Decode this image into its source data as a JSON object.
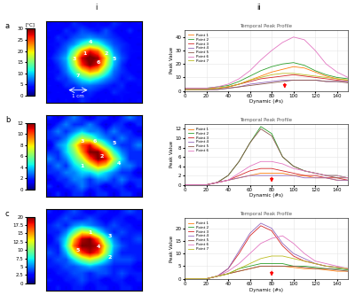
{
  "column_labels": [
    "i",
    "ii"
  ],
  "chart_data": [
    {
      "type": "heatmap",
      "row_label": "a",
      "colorbar_label": "[°C]",
      "colorbar_range": [
        0,
        30
      ],
      "colorbar_ticks": [
        0,
        5,
        10,
        15,
        20,
        25,
        30
      ],
      "tick_labels": false,
      "scale_label": "1 cm",
      "cells": [
        [
          3,
          4,
          3,
          5,
          4,
          3,
          4,
          3,
          5,
          4,
          3,
          4
        ],
        [
          4,
          3,
          5,
          4,
          6,
          5,
          4,
          6,
          4,
          3,
          5,
          3
        ],
        [
          3,
          5,
          4,
          6,
          7,
          8,
          7,
          6,
          5,
          4,
          3,
          4
        ],
        [
          4,
          4,
          6,
          8,
          12,
          15,
          13,
          9,
          6,
          5,
          4,
          3
        ],
        [
          3,
          5,
          7,
          14,
          22,
          27,
          24,
          15,
          8,
          5,
          4,
          4
        ],
        [
          4,
          6,
          9,
          18,
          28,
          31,
          29,
          20,
          10,
          6,
          4,
          3
        ],
        [
          3,
          5,
          8,
          16,
          26,
          30,
          27,
          18,
          9,
          5,
          3,
          4
        ],
        [
          4,
          4,
          7,
          12,
          18,
          22,
          20,
          13,
          7,
          5,
          4,
          3
        ],
        [
          3,
          5,
          5,
          8,
          11,
          13,
          11,
          8,
          6,
          4,
          5,
          4
        ],
        [
          4,
          3,
          5,
          5,
          7,
          7,
          6,
          5,
          4,
          5,
          3,
          4
        ],
        [
          3,
          4,
          3,
          5,
          4,
          5,
          4,
          3,
          5,
          4,
          4,
          3
        ],
        [
          4,
          3,
          4,
          3,
          5,
          4,
          3,
          4,
          3,
          4,
          3,
          4
        ]
      ],
      "point_labels": [
        {
          "label": "4",
          "x": 5,
          "y": 2.6
        },
        {
          "label": "1",
          "x": 4.3,
          "y": 4.2
        },
        {
          "label": "2",
          "x": 7,
          "y": 4.2
        },
        {
          "label": "5",
          "x": 8,
          "y": 5
        },
        {
          "label": "3",
          "x": 3,
          "y": 5
        },
        {
          "label": "6",
          "x": 6,
          "y": 5.6
        },
        {
          "label": "7",
          "x": 3.5,
          "y": 7.5
        }
      ]
    },
    {
      "type": "line",
      "title": "Temporal Peak Profile",
      "x_label": "Dynamic (#s)",
      "y_label": "Peak Value",
      "xlim": [
        0,
        150
      ],
      "xticks": [
        0,
        20,
        40,
        60,
        80,
        100,
        120,
        140
      ],
      "ylim": [
        0,
        45
      ],
      "yticks": [
        0,
        10,
        20,
        30,
        40
      ],
      "legend": "upper left",
      "arrow_x": 92,
      "x": [
        0,
        10,
        20,
        30,
        40,
        50,
        60,
        70,
        80,
        90,
        100,
        110,
        120,
        130,
        140,
        150
      ],
      "series": [
        {
          "name": "Point 1",
          "color": "#ff7f0e",
          "values": [
            2,
            2,
            2,
            2,
            3,
            5,
            8,
            11,
            14,
            16,
            18,
            17,
            14,
            11,
            9,
            8
          ]
        },
        {
          "name": "Point 2",
          "color": "#2ca02c",
          "values": [
            2,
            2,
            2,
            3,
            4,
            7,
            11,
            15,
            18,
            20,
            21,
            19,
            15,
            12,
            10,
            9
          ]
        },
        {
          "name": "Point 3",
          "color": "#d62728",
          "values": [
            1,
            1,
            1,
            2,
            3,
            5,
            7,
            9,
            10,
            11,
            12,
            11,
            10,
            9,
            8,
            7
          ]
        },
        {
          "name": "Point 4",
          "color": "#9467bd",
          "values": [
            1,
            1,
            1,
            1,
            2,
            3,
            5,
            6,
            7,
            8,
            8,
            8,
            8,
            7,
            7,
            7
          ]
        },
        {
          "name": "Point 5",
          "color": "#8c564b",
          "values": [
            1,
            1,
            1,
            1,
            2,
            3,
            4,
            5,
            6,
            7,
            8,
            8,
            8,
            7,
            7,
            6
          ]
        },
        {
          "name": "Point 6",
          "color": "#e377c2",
          "values": [
            2,
            2,
            2,
            3,
            5,
            9,
            15,
            23,
            30,
            36,
            40,
            38,
            30,
            20,
            14,
            10
          ]
        },
        {
          "name": "Point 7",
          "color": "#bcbd22",
          "values": [
            1,
            1,
            1,
            2,
            3,
            5,
            8,
            10,
            12,
            13,
            13,
            12,
            11,
            10,
            9,
            8
          ]
        }
      ]
    },
    {
      "type": "heatmap",
      "row_label": "b",
      "colorbar_range": [
        0,
        12
      ],
      "colorbar_ticks": [
        0,
        2,
        4,
        6,
        8,
        10,
        12
      ],
      "tick_labels": false,
      "cells": [
        [
          2,
          1,
          2,
          3,
          2,
          1,
          2,
          2,
          1,
          2,
          3,
          2
        ],
        [
          1,
          2,
          3,
          2,
          2,
          3,
          2,
          1,
          2,
          2,
          1,
          2
        ],
        [
          2,
          3,
          2,
          3,
          4,
          3,
          3,
          2,
          3,
          2,
          2,
          1
        ],
        [
          2,
          2,
          3,
          5,
          7,
          6,
          4,
          3,
          2,
          3,
          2,
          2
        ],
        [
          1,
          3,
          4,
          7,
          10,
          11,
          8,
          5,
          3,
          2,
          2,
          3
        ],
        [
          2,
          2,
          4,
          6,
          9,
          12,
          12,
          9,
          5,
          3,
          2,
          2
        ],
        [
          3,
          2,
          3,
          5,
          7,
          10,
          12,
          11,
          7,
          4,
          2,
          2
        ],
        [
          2,
          3,
          2,
          4,
          5,
          7,
          9,
          8,
          5,
          3,
          3,
          2
        ],
        [
          2,
          2,
          3,
          3,
          4,
          4,
          5,
          4,
          3,
          2,
          2,
          1
        ],
        [
          1,
          2,
          2,
          3,
          3,
          2,
          3,
          3,
          2,
          3,
          2,
          2
        ],
        [
          2,
          1,
          2,
          2,
          3,
          2,
          2,
          1,
          2,
          2,
          1,
          2
        ],
        [
          1,
          2,
          1,
          2,
          2,
          1,
          2,
          2,
          1,
          2,
          2,
          1
        ]
      ],
      "point_labels": [
        {
          "label": "3",
          "x": 4,
          "y": 3.4
        },
        {
          "label": "6",
          "x": 5.6,
          "y": 3.4
        },
        {
          "label": "5",
          "x": 8,
          "y": 3.6
        },
        {
          "label": "2",
          "x": 6.5,
          "y": 5.5
        },
        {
          "label": "4",
          "x": 8.6,
          "y": 6.6
        },
        {
          "label": "1",
          "x": 4,
          "y": 7
        }
      ]
    },
    {
      "type": "line",
      "title": "Temporal Peak Profile",
      "x_label": "Dynamic (#s)",
      "y_label": "Peak Value",
      "xlim": [
        0,
        150
      ],
      "xticks": [
        0,
        20,
        40,
        60,
        80,
        100,
        120,
        140
      ],
      "ylim": [
        0,
        13
      ],
      "yticks": [
        0,
        2,
        4,
        6,
        8,
        10,
        12
      ],
      "legend": "upper left",
      "arrow_x": 80,
      "x": [
        0,
        10,
        20,
        30,
        40,
        50,
        60,
        70,
        80,
        90,
        100,
        110,
        120,
        130,
        140,
        150
      ],
      "series": [
        {
          "name": "Point 1",
          "color": "#ff7f0e",
          "values": [
            0,
            0,
            0,
            0.5,
            1,
            1.5,
            2,
            2.5,
            2.5,
            2.5,
            2,
            2,
            1.5,
            1.5,
            1,
            1
          ]
        },
        {
          "name": "Point 2",
          "color": "#2ca02c",
          "values": [
            0,
            0,
            0,
            0.5,
            2,
            5,
            9,
            12.5,
            11,
            6,
            4,
            3,
            2.5,
            2,
            2,
            1.5
          ]
        },
        {
          "name": "Point 3",
          "color": "#d62728",
          "values": [
            0,
            0,
            0,
            0.5,
            1,
            2,
            3,
            3.5,
            3.5,
            3,
            2.5,
            2,
            2,
            1.5,
            1.5,
            1
          ]
        },
        {
          "name": "Point 4",
          "color": "#9467bd",
          "values": [
            0,
            0,
            0,
            0.5,
            1,
            1.5,
            2,
            2,
            2,
            2,
            2,
            1.5,
            1.5,
            1.5,
            1,
            1
          ]
        },
        {
          "name": "Point 5",
          "color": "#8c564b",
          "values": [
            0,
            0,
            0,
            0.5,
            2,
            5,
            9,
            12,
            10.5,
            6,
            4,
            3,
            2.5,
            2,
            1.5,
            1.5
          ]
        },
        {
          "name": "Point 6",
          "color": "#e377c2",
          "values": [
            0,
            0,
            0,
            0.5,
            1,
            2.5,
            4,
            5,
            5,
            4.5,
            3.5,
            3,
            2.5,
            2,
            2,
            1.5
          ]
        }
      ]
    },
    {
      "type": "heatmap",
      "row_label": "c",
      "colorbar_range": [
        0,
        20
      ],
      "colorbar_ticks": [
        0,
        2.5,
        5,
        7.5,
        10,
        12.5,
        15,
        17.5,
        20
      ],
      "tick_labels": false,
      "cells": [
        [
          3,
          2,
          3,
          4,
          3,
          2,
          3,
          3,
          2,
          3,
          4,
          3
        ],
        [
          2,
          3,
          4,
          3,
          3,
          4,
          3,
          2,
          3,
          3,
          2,
          3
        ],
        [
          3,
          4,
          3,
          5,
          6,
          5,
          4,
          3,
          4,
          3,
          3,
          2
        ],
        [
          3,
          3,
          5,
          9,
          13,
          12,
          8,
          5,
          3,
          4,
          3,
          3
        ],
        [
          2,
          4,
          7,
          14,
          19,
          20,
          16,
          9,
          5,
          3,
          3,
          4
        ],
        [
          3,
          3,
          8,
          16,
          20,
          20,
          19,
          12,
          6,
          4,
          3,
          3
        ],
        [
          4,
          3,
          6,
          12,
          17,
          19,
          17,
          11,
          5,
          3,
          3,
          3
        ],
        [
          3,
          4,
          4,
          7,
          10,
          12,
          10,
          7,
          4,
          4,
          4,
          3
        ],
        [
          3,
          3,
          4,
          4,
          5,
          6,
          5,
          4,
          3,
          3,
          3,
          2
        ],
        [
          2,
          3,
          3,
          4,
          4,
          3,
          4,
          4,
          3,
          4,
          3,
          3
        ],
        [
          3,
          2,
          3,
          3,
          4,
          3,
          3,
          2,
          3,
          3,
          2,
          3
        ],
        [
          2,
          3,
          2,
          3,
          3,
          2,
          3,
          3,
          2,
          3,
          3,
          2
        ]
      ],
      "point_labels": [
        {
          "label": "1",
          "x": 5,
          "y": 3
        },
        {
          "label": "3",
          "x": 7.5,
          "y": 3.5
        },
        {
          "label": "4",
          "x": 6,
          "y": 5
        },
        {
          "label": "5",
          "x": 3.5,
          "y": 5.5
        },
        {
          "label": "2",
          "x": 7.5,
          "y": 6.6
        }
      ]
    },
    {
      "type": "line",
      "title": "Temporal Peak Profile",
      "x_label": "Dynamic (#s)",
      "y_label": "Peak Value",
      "xlim": [
        0,
        150
      ],
      "xticks": [
        0,
        20,
        40,
        60,
        80,
        100,
        120,
        140
      ],
      "ylim": [
        0,
        24
      ],
      "yticks": [
        0,
        5,
        10,
        15,
        20
      ],
      "legend": "upper left",
      "arrow_x": 80,
      "x": [
        0,
        10,
        20,
        30,
        40,
        50,
        60,
        70,
        80,
        90,
        100,
        110,
        120,
        130,
        140,
        150
      ],
      "series": [
        {
          "name": "Point 1",
          "color": "#ff7f0e",
          "values": [
            0,
            0,
            0,
            1,
            2,
            3,
            4,
            5,
            5,
            5,
            4.5,
            4,
            4,
            3.5,
            3,
            3
          ]
        },
        {
          "name": "Point 2",
          "color": "#2ca02c",
          "values": [
            0,
            0,
            0,
            1,
            2,
            4,
            5,
            6,
            6,
            6,
            5,
            5,
            4.5,
            4,
            4,
            3.5
          ]
        },
        {
          "name": "Point 3",
          "color": "#d62728",
          "values": [
            0,
            0,
            0,
            1,
            4,
            10,
            17,
            21,
            19,
            13,
            9,
            7,
            6,
            5,
            4.5,
            4
          ]
        },
        {
          "name": "Point 4",
          "color": "#9467bd",
          "values": [
            0,
            0,
            0,
            1,
            4,
            11,
            18,
            22,
            20,
            14,
            10,
            8,
            6,
            5,
            4.5,
            4
          ]
        },
        {
          "name": "Point 5",
          "color": "#8c564b",
          "values": [
            0,
            0,
            0,
            1,
            2,
            3,
            4,
            5,
            5,
            5,
            5,
            4.5,
            4,
            4,
            3.5,
            3
          ]
        },
        {
          "name": "Point 6",
          "color": "#e377c2",
          "values": [
            0,
            0,
            0,
            1,
            3,
            6,
            10,
            14,
            16,
            17,
            14,
            10,
            7,
            6,
            5,
            4
          ]
        },
        {
          "name": "Point 7",
          "color": "#bcbd22",
          "values": [
            0,
            0,
            0,
            1,
            2,
            4,
            6,
            8,
            9,
            9,
            8,
            7,
            6,
            5,
            4.5,
            4
          ]
        }
      ]
    }
  ]
}
